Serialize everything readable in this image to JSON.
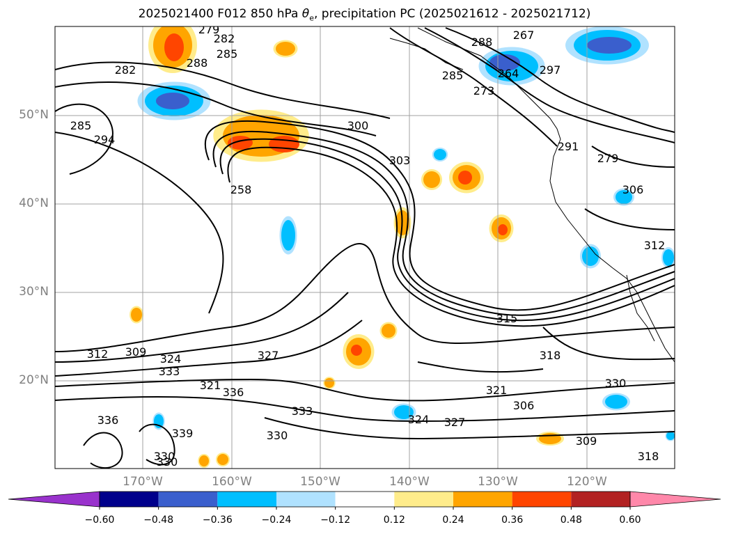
{
  "title": {
    "prefix": "2025021400 F012 850 hPa ",
    "symbol": "θ",
    "symbol_sub": "e",
    "suffix": ", precipitation PC (2025021612 - 2025021712)"
  },
  "lat_labels": [
    "50°N",
    "40°N",
    "30°N",
    "20°N"
  ],
  "lon_labels": [
    "170°W",
    "160°W",
    "150°W",
    "140°W",
    "130°W",
    "120°W"
  ],
  "contour_labels": [
    "279",
    "282",
    "285",
    "288",
    "282",
    "285",
    "294",
    "300",
    "303",
    "258",
    "267",
    "288",
    "285",
    "273",
    "264",
    "297",
    "279",
    "291",
    "306",
    "309",
    "312",
    "318",
    "315",
    "321",
    "306",
    "312",
    "333",
    "324",
    "327",
    "321",
    "336",
    "333",
    "330",
    "327",
    "324",
    "339",
    "330",
    "330",
    "336",
    "309",
    "330",
    "318"
  ],
  "colorbar": {
    "ticks": [
      "−0.60",
      "−0.48",
      "−0.36",
      "−0.24",
      "−0.12",
      "0.12",
      "0.24",
      "0.36",
      "0.48",
      "0.60"
    ],
    "colors": [
      "#9932cc",
      "#00008b",
      "#3a5fcd",
      "#00bfff",
      "#b0e2ff",
      "#ffffff",
      "#ffec8b",
      "#ffa500",
      "#ff4500",
      "#b22222",
      "#ff88aa"
    ]
  }
}
